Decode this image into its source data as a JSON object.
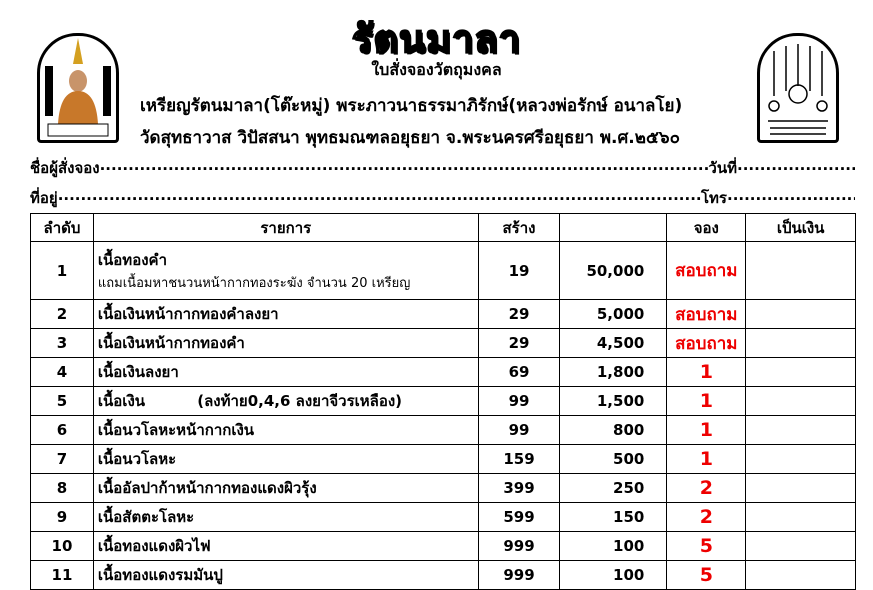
{
  "title": "รัตนมาลา",
  "subtitle": "ใบสั่งจองวัตถุมงคล",
  "line1": "เหรียญรัตนมาลา(โต๊ะหมู่) พระภาวนาธรรมาภิรักษ์(หลวงพ่อรักษ์ อนาลโย)",
  "line2": "วัดสุทธาวาส วิปัสสนา พุทธมณฑลอยุธยา จ.พระนครศรีอยุธยา พ.ศ.๒๕๖๐",
  "form": {
    "name_label": "ชื่อผู้สั่งจอง",
    "date_label": "วันที่",
    "address_label": "ที่อยู่",
    "phone_label": "โทร"
  },
  "logos": {
    "left": "หลวงพ่อรักษ์ อนาลโย",
    "right": "พระภาวนาธรรมาภิรักษ์ วัดสุทธาวาส วิปัสสนา"
  },
  "table": {
    "headers": [
      "ลำดับ",
      "รายการ",
      "สร้าง",
      "",
      "จอง",
      "เป็นเงิน"
    ],
    "rows": [
      {
        "no": "1",
        "item": "เนื้อทองคำ",
        "note": "แถมเนื้อมหาชนวนหน้ากากทองระฆัง จำนวน 20 เหรียญ",
        "made": "19",
        "price": "50,000",
        "reserve": "สอบถาม"
      },
      {
        "no": "2",
        "item": "เนื้อเงินหน้ากากทองคำลงยา",
        "made": "29",
        "price": "5,000",
        "reserve": "สอบถาม"
      },
      {
        "no": "3",
        "item": "เนื้อเงินหน้ากากทองคำ",
        "made": "29",
        "price": "4,500",
        "reserve": "สอบถาม"
      },
      {
        "no": "4",
        "item": "เนื้อเงินลงยา",
        "made": "69",
        "price": "1,800",
        "reserve": "1"
      },
      {
        "no": "5",
        "item": "เนื้อเงิน          (ลงท้าย0,4,6 ลงยาจีวรเหลือง)",
        "made": "99",
        "price": "1,500",
        "reserve": "1"
      },
      {
        "no": "6",
        "item": "เนื้อนวโลหะหน้ากากเงิน",
        "made": "99",
        "price": "800",
        "reserve": "1"
      },
      {
        "no": "7",
        "item": "เนื้อนวโลหะ",
        "made": "159",
        "price": "500",
        "reserve": "1"
      },
      {
        "no": "8",
        "item": "เนื้ออัลปาก้าหน้ากากทองแดงผิวรุ้ง",
        "made": "399",
        "price": "250",
        "reserve": "2"
      },
      {
        "no": "9",
        "item": "เนื้อสัตตะโลหะ",
        "made": "599",
        "price": "150",
        "reserve": "2"
      },
      {
        "no": "10",
        "item": "เนื้อทองแดงผิวไฟ",
        "made": "999",
        "price": "100",
        "reserve": "5"
      },
      {
        "no": "11",
        "item": "เนื้อทองแดงรมมันปู",
        "made": "999",
        "price": "100",
        "reserve": "5"
      }
    ]
  },
  "colors": {
    "reserve_text": "#e00000",
    "monk_robe": "#c8782a"
  }
}
